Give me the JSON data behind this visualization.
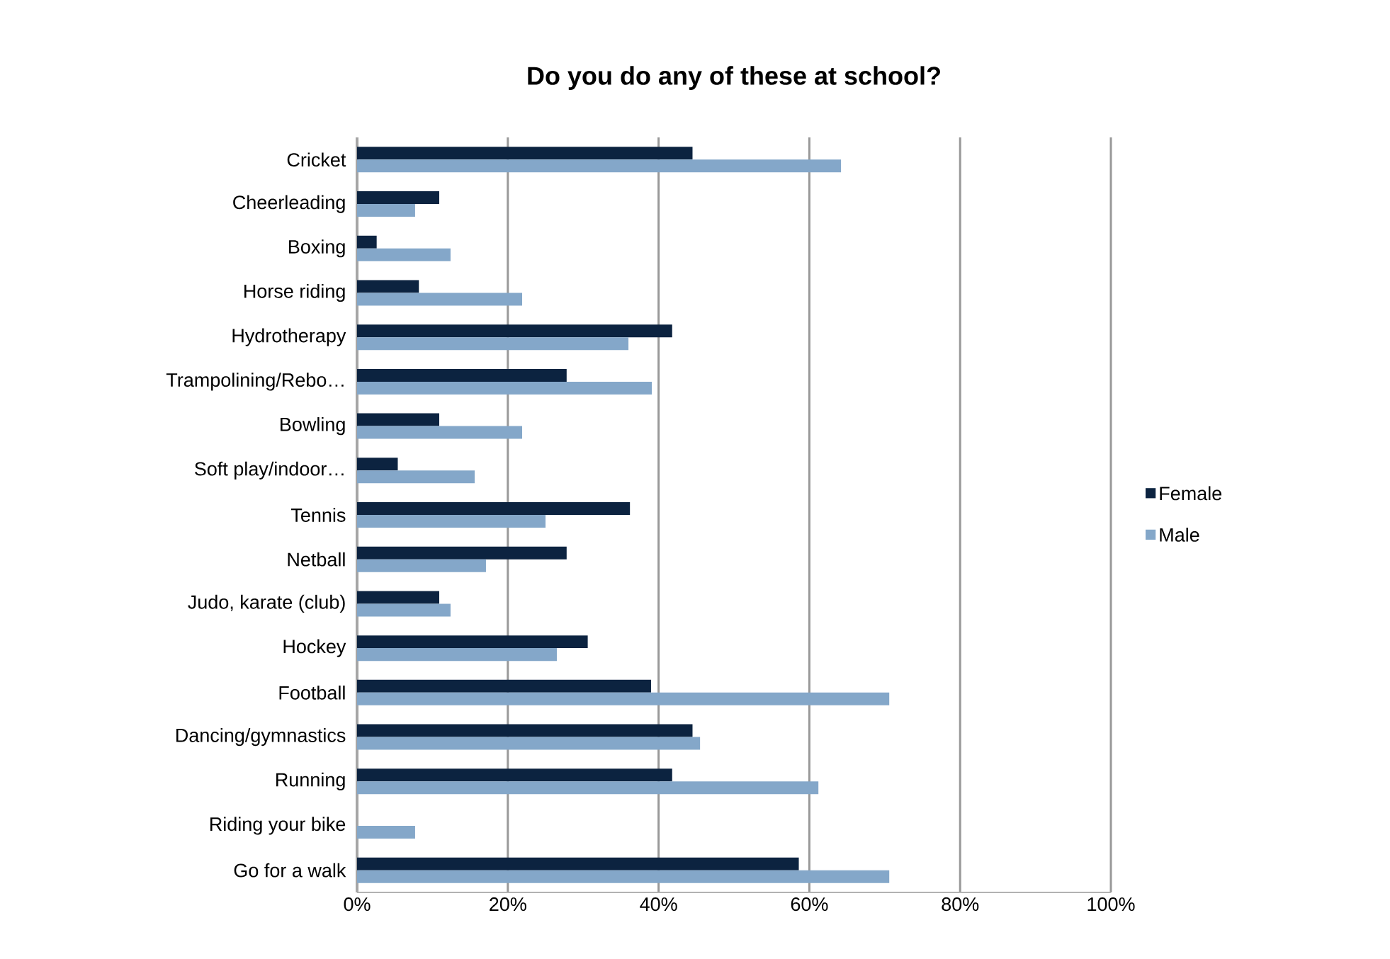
{
  "chart_data": {
    "type": "bar",
    "orientation": "horizontal",
    "title": "Do you do any of these at school?",
    "categories": [
      "Cricket",
      "Cheerleading",
      "Boxing",
      "Horse riding",
      "Hydrotherapy",
      "Trampolining/Rebo…",
      "Bowling",
      "Soft play/indoor…",
      "Tennis",
      "Netball",
      "Judo, karate (club)",
      "Hockey",
      "Football",
      "Dancing/gymnastics",
      "Running",
      "Riding your bike",
      "Go for a walk"
    ],
    "series": [
      {
        "name": "Female",
        "color": "#0c2340",
        "values": [
          44.5,
          10.9,
          2.6,
          8.2,
          41.8,
          27.8,
          10.9,
          5.4,
          36.2,
          27.8,
          10.9,
          30.6,
          39.0,
          44.5,
          41.8,
          null,
          58.6
        ]
      },
      {
        "name": "Male",
        "color": "#84a7c9",
        "values": [
          64.2,
          7.7,
          12.4,
          21.9,
          36.0,
          39.1,
          21.9,
          15.6,
          25.0,
          17.1,
          12.4,
          26.5,
          70.6,
          45.5,
          61.2,
          7.7,
          70.6
        ]
      }
    ],
    "xlim": [
      0,
      100
    ],
    "xticks": [
      {
        "value": 0,
        "label": "0%"
      },
      {
        "value": 20,
        "label": "20%"
      },
      {
        "value": 40,
        "label": "40%"
      },
      {
        "value": 60,
        "label": "60%"
      },
      {
        "value": 80,
        "label": "80%"
      },
      {
        "value": 100,
        "label": "100%"
      }
    ],
    "grid": "x",
    "legend": "right"
  }
}
